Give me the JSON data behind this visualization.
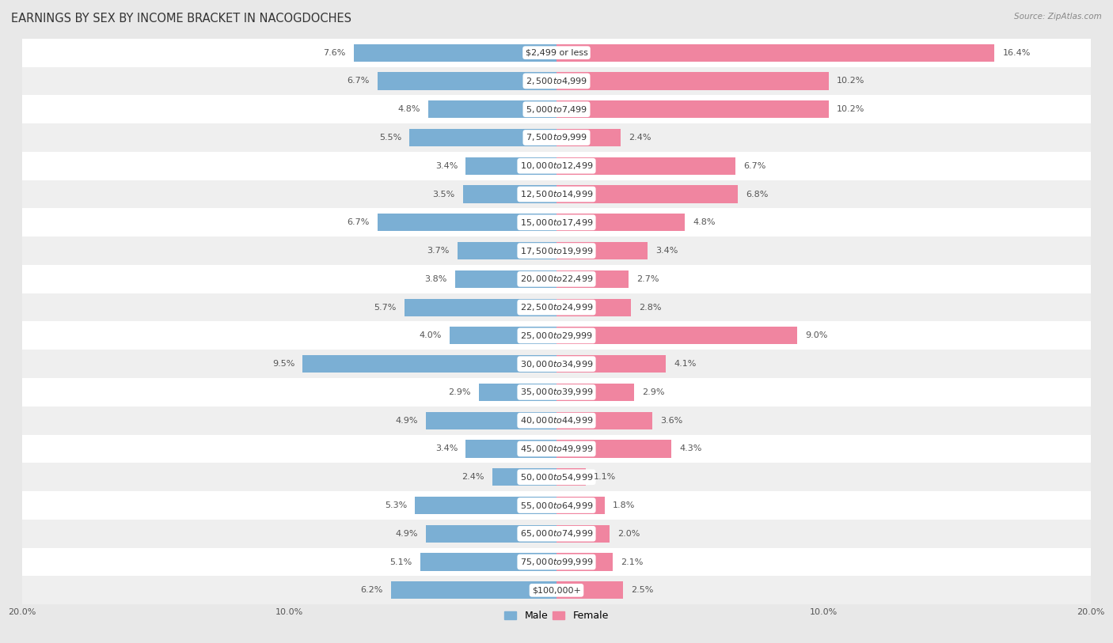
{
  "title": "EARNINGS BY SEX BY INCOME BRACKET IN NACOGDOCHES",
  "source": "Source: ZipAtlas.com",
  "categories": [
    "$2,499 or less",
    "$2,500 to $4,999",
    "$5,000 to $7,499",
    "$7,500 to $9,999",
    "$10,000 to $12,499",
    "$12,500 to $14,999",
    "$15,000 to $17,499",
    "$17,500 to $19,999",
    "$20,000 to $22,499",
    "$22,500 to $24,999",
    "$25,000 to $29,999",
    "$30,000 to $34,999",
    "$35,000 to $39,999",
    "$40,000 to $44,999",
    "$45,000 to $49,999",
    "$50,000 to $54,999",
    "$55,000 to $64,999",
    "$65,000 to $74,999",
    "$75,000 to $99,999",
    "$100,000+"
  ],
  "male_values": [
    7.6,
    6.7,
    4.8,
    5.5,
    3.4,
    3.5,
    6.7,
    3.7,
    3.8,
    5.7,
    4.0,
    9.5,
    2.9,
    4.9,
    3.4,
    2.4,
    5.3,
    4.9,
    5.1,
    6.2
  ],
  "female_values": [
    16.4,
    10.2,
    10.2,
    2.4,
    6.7,
    6.8,
    4.8,
    3.4,
    2.7,
    2.8,
    9.0,
    4.1,
    2.9,
    3.6,
    4.3,
    1.1,
    1.8,
    2.0,
    2.1,
    2.5
  ],
  "male_color": "#7bafd4",
  "female_color": "#f085a0",
  "row_color_even": "#f5f5f5",
  "row_color_odd": "#e8e8e8",
  "background_color": "#e8e8e8",
  "axis_limit": 20.0,
  "legend_male": "Male",
  "legend_female": "Female",
  "title_fontsize": 10.5,
  "label_fontsize": 8,
  "category_fontsize": 8,
  "xtick_labels": [
    "20.0%",
    "10.0%",
    "",
    "10.0%",
    "20.0%"
  ],
  "xtick_positions": [
    -20,
    -10,
    0,
    10,
    20
  ]
}
